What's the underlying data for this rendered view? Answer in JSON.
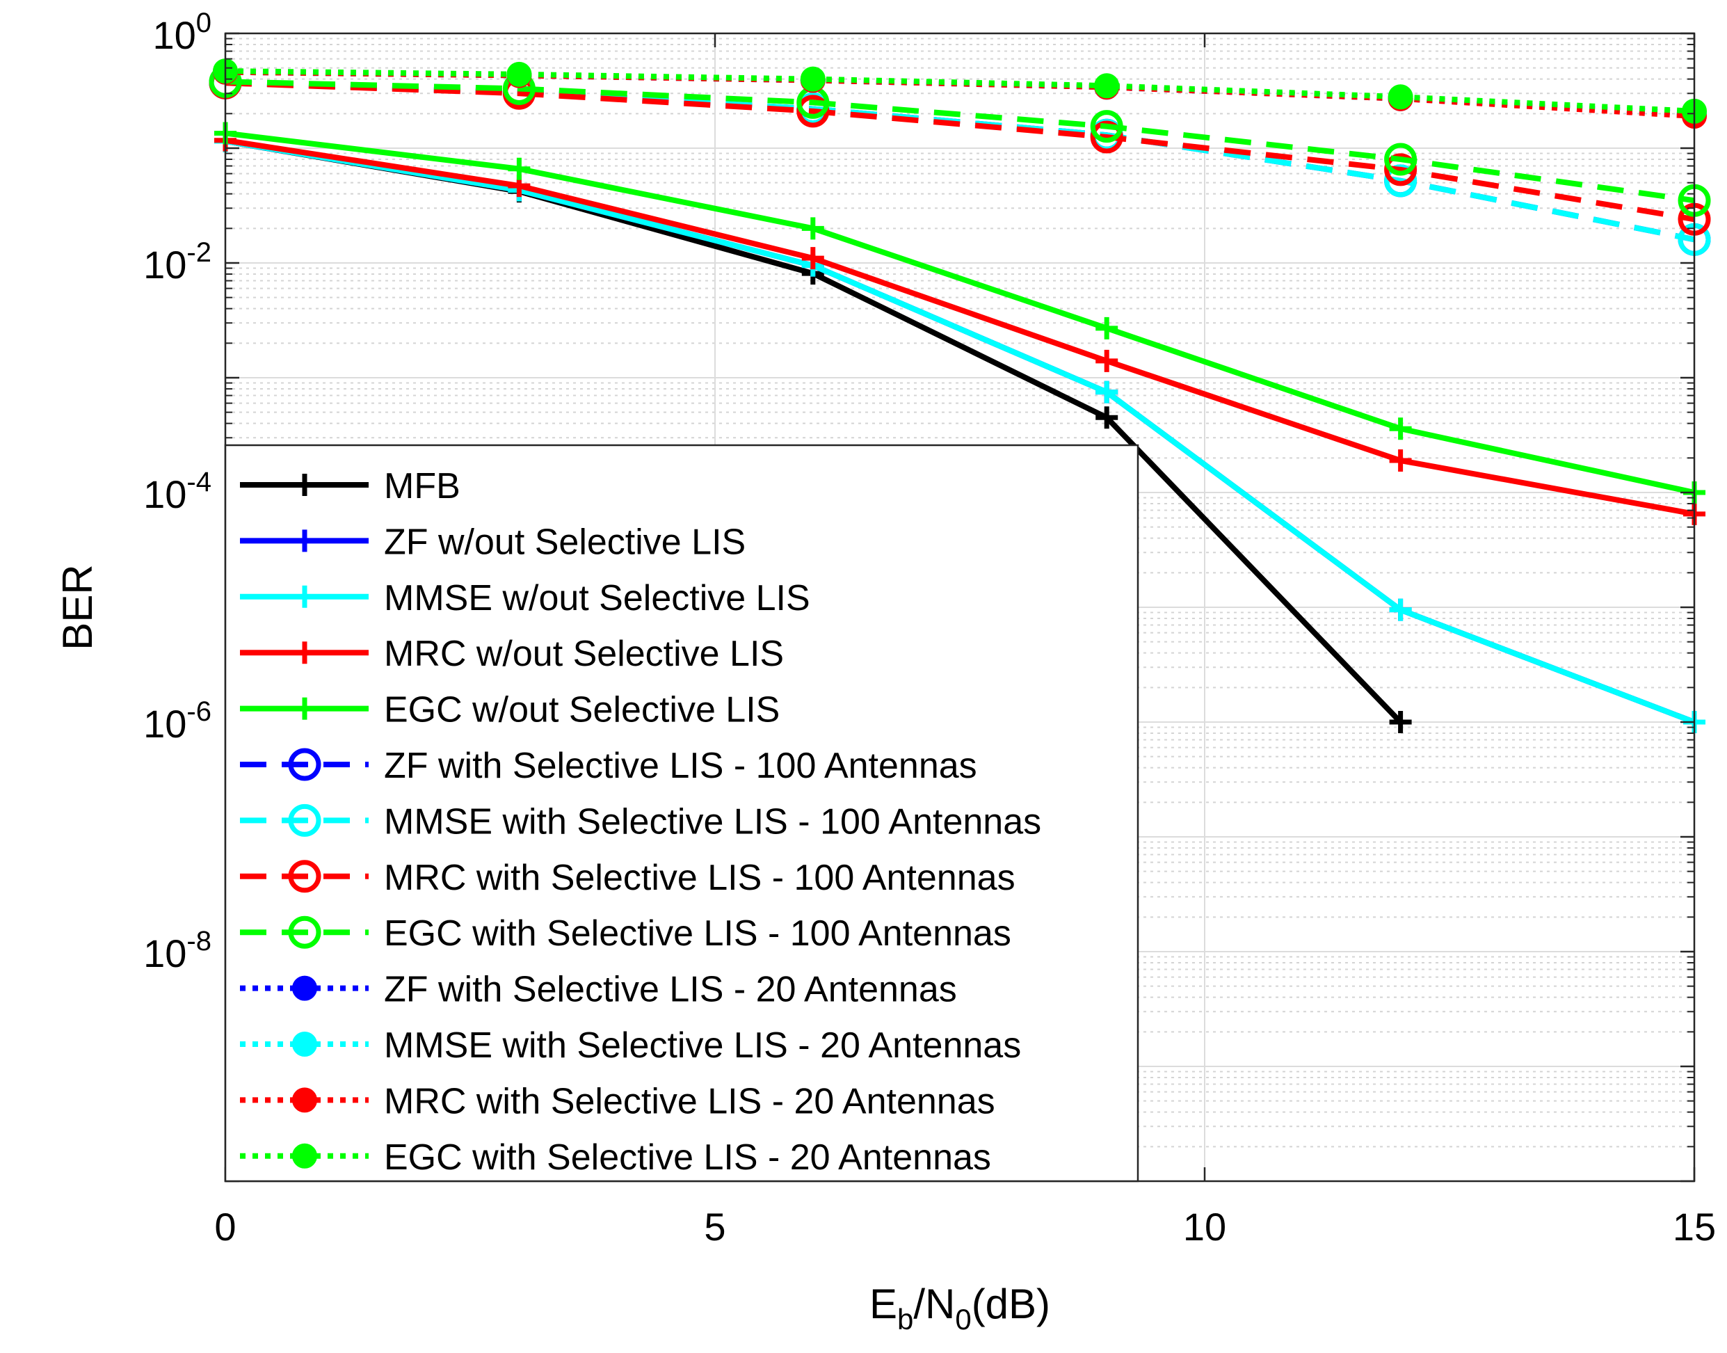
{
  "chart_data": {
    "type": "line",
    "xlabel": {
      "base": "E",
      "sub1": "b",
      "mid": "/N",
      "sub2": "0",
      "tail": "(dB)"
    },
    "ylabel": "BER",
    "x_ticks": [
      "0",
      "5",
      "10",
      "15"
    ],
    "y_ticks": [
      {
        "base": "10",
        "exp": "0",
        "value": 1
      },
      {
        "base": "10",
        "exp": "-2",
        "value": 0.01
      },
      {
        "base": "10",
        "exp": "-4",
        "value": 0.0001
      },
      {
        "base": "10",
        "exp": "-6",
        "value": 1e-06
      },
      {
        "base": "10",
        "exp": "-8",
        "value": 1e-08
      }
    ],
    "xlim": [
      0,
      15
    ],
    "ylim": [
      1e-10,
      1
    ],
    "yscale": "log",
    "grid": true,
    "legend_position": "bottom-left",
    "x": [
      0,
      3,
      6,
      9,
      12,
      15
    ],
    "series": [
      {
        "name": "MFB",
        "color": "#000000",
        "dash": "solid",
        "marker": "plus",
        "values": [
          0.115,
          0.042,
          0.0081,
          0.00045,
          1e-06,
          null
        ]
      },
      {
        "name": "ZF w/out Selective LIS",
        "color": "#0000ff",
        "dash": "solid",
        "marker": "plus",
        "values": [
          0.115,
          0.043,
          0.0095,
          0.00075,
          9.5e-06,
          1e-06
        ]
      },
      {
        "name": "MMSE w/out Selective LIS",
        "color": "#00ffff",
        "dash": "solid",
        "marker": "plus",
        "values": [
          0.115,
          0.043,
          0.0095,
          0.00075,
          9.5e-06,
          1e-06
        ]
      },
      {
        "name": "MRC w/out Selective LIS",
        "color": "#ff0000",
        "dash": "solid",
        "marker": "plus",
        "values": [
          0.117,
          0.047,
          0.011,
          0.0014,
          0.00019,
          6.5e-05
        ]
      },
      {
        "name": "EGC w/out Selective LIS",
        "color": "#00ff00",
        "dash": "solid",
        "marker": "plus",
        "values": [
          0.135,
          0.066,
          0.02,
          0.0027,
          0.00036,
          0.0001
        ]
      },
      {
        "name": "ZF with Selective LIS - 100 Antennas",
        "color": "#0000ff",
        "dash": "dashed",
        "marker": "circle",
        "values": [
          0.37,
          0.31,
          0.22,
          0.13,
          0.052,
          0.016
        ]
      },
      {
        "name": "MMSE with Selective LIS - 100 Antennas",
        "color": "#00ffff",
        "dash": "dashed",
        "marker": "circle",
        "values": [
          0.37,
          0.31,
          0.22,
          0.13,
          0.052,
          0.016
        ]
      },
      {
        "name": "MRC with Selective LIS - 100 Antennas",
        "color": "#ff0000",
        "dash": "dashed",
        "marker": "circle",
        "values": [
          0.37,
          0.3,
          0.21,
          0.125,
          0.065,
          0.024
        ]
      },
      {
        "name": "EGC with Selective LIS - 100 Antennas",
        "color": "#00ff00",
        "dash": "dashed",
        "marker": "circle",
        "values": [
          0.38,
          0.33,
          0.25,
          0.155,
          0.08,
          0.035
        ]
      },
      {
        "name": "ZF with Selective LIS - 20 Antennas",
        "color": "#0000ff",
        "dash": "dotted",
        "marker": "dot",
        "values": [
          0.46,
          0.43,
          0.39,
          0.34,
          0.27,
          0.2
        ]
      },
      {
        "name": "MMSE with Selective LIS - 20 Antennas",
        "color": "#00ffff",
        "dash": "dotted",
        "marker": "dot",
        "values": [
          0.46,
          0.43,
          0.39,
          0.34,
          0.27,
          0.2
        ]
      },
      {
        "name": "MRC with Selective LIS - 20 Antennas",
        "color": "#ff0000",
        "dash": "dotted",
        "marker": "dot",
        "values": [
          0.46,
          0.43,
          0.39,
          0.34,
          0.27,
          0.19
        ]
      },
      {
        "name": "EGC with Selective LIS - 20 Antennas",
        "color": "#00ff00",
        "dash": "dotted",
        "marker": "dot",
        "values": [
          0.47,
          0.44,
          0.4,
          0.35,
          0.28,
          0.21
        ]
      }
    ]
  }
}
